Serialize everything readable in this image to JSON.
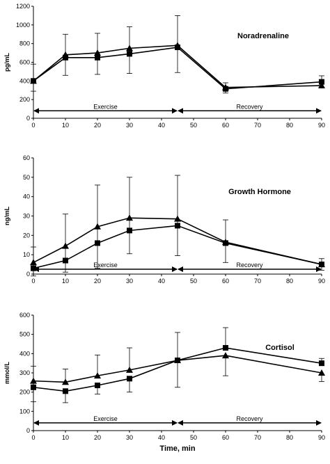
{
  "chart_data": [
    {
      "type": "line",
      "title": "Noradrenaline",
      "ylabel": "pg/mL",
      "ylim": [
        0,
        1200
      ],
      "yticks": [
        0,
        200,
        400,
        600,
        800,
        1000,
        1200
      ],
      "xlim": [
        0,
        90
      ],
      "xticks": [
        0,
        10,
        20,
        30,
        40,
        50,
        60,
        70,
        80,
        90
      ],
      "x": [
        0,
        10,
        20,
        30,
        45,
        60,
        90
      ],
      "series": [
        {
          "marker": "triangle",
          "values": [
            400,
            680,
            700,
            750,
            780,
            330,
            350
          ],
          "err_low": [
            null,
            null,
            null,
            null,
            null,
            null,
            null
          ],
          "err_high": [
            null,
            null,
            null,
            null,
            null,
            null,
            null
          ]
        },
        {
          "marker": "square",
          "values": [
            400,
            650,
            650,
            690,
            760,
            315,
            390
          ],
          "err_low": [
            290,
            460,
            470,
            480,
            490,
            270,
            330
          ],
          "err_high": [
            580,
            900,
            910,
            980,
            1100,
            380,
            455
          ]
        }
      ],
      "phases": [
        {
          "label": "Exercise",
          "from": 0,
          "to": 45
        },
        {
          "label": "Recovery",
          "from": 45,
          "to": 90
        }
      ],
      "phase_arrow_y": 80
    },
    {
      "type": "line",
      "title": "Growth Hormone",
      "ylabel": "ng/mL",
      "ylim": [
        0,
        60
      ],
      "yticks": [
        0,
        10,
        20,
        30,
        40,
        50,
        60
      ],
      "xlim": [
        0,
        90
      ],
      "xticks": [
        0,
        10,
        20,
        30,
        40,
        50,
        60,
        70,
        80,
        90
      ],
      "x": [
        0,
        10,
        20,
        30,
        45,
        60,
        90
      ],
      "series": [
        {
          "marker": "triangle",
          "values": [
            6,
            14.5,
            24.5,
            29,
            28.5,
            16.5,
            5
          ],
          "err_low": [
            null,
            1,
            3,
            10.5,
            9.5,
            null,
            2
          ],
          "err_high": [
            14,
            31,
            46,
            50,
            51,
            28,
            8
          ]
        },
        {
          "marker": "square",
          "values": [
            3,
            7,
            16,
            22.5,
            25,
            16,
            5
          ],
          "err_low": [
            -1,
            null,
            null,
            null,
            null,
            6,
            null
          ],
          "err_high": [
            null,
            null,
            null,
            null,
            null,
            null,
            null
          ]
        }
      ],
      "phases": [
        {
          "label": "Exercise",
          "from": 0,
          "to": 45
        },
        {
          "label": "Recovery",
          "from": 45,
          "to": 90
        }
      ],
      "phase_arrow_y": 2.5
    },
    {
      "type": "line",
      "title": "Cortisol",
      "ylabel": "mmol/L",
      "ylim": [
        0,
        600
      ],
      "yticks": [
        0,
        100,
        200,
        300,
        400,
        500,
        600
      ],
      "xlim": [
        0,
        90
      ],
      "xticks": [
        0,
        10,
        20,
        30,
        40,
        50,
        60,
        70,
        80,
        90
      ],
      "x": [
        0,
        10,
        20,
        30,
        45,
        60,
        90
      ],
      "series": [
        {
          "marker": "triangle",
          "values": [
            258,
            252,
            285,
            315,
            365,
            390,
            300
          ],
          "err_low": [
            null,
            null,
            null,
            null,
            null,
            285,
            255
          ],
          "err_high": [
            335,
            320,
            393,
            430,
            510,
            null,
            null
          ]
        },
        {
          "marker": "square",
          "values": [
            225,
            205,
            235,
            270,
            365,
            430,
            350
          ],
          "err_low": [
            150,
            145,
            190,
            200,
            225,
            null,
            null
          ],
          "err_high": [
            null,
            null,
            null,
            null,
            null,
            535,
            375
          ]
        }
      ],
      "phases": [
        {
          "label": "Exercise",
          "from": 0,
          "to": 45
        },
        {
          "label": "Recovery",
          "from": 45,
          "to": 90
        }
      ],
      "phase_arrow_y": 40
    }
  ],
  "xlabel": "Time, min"
}
